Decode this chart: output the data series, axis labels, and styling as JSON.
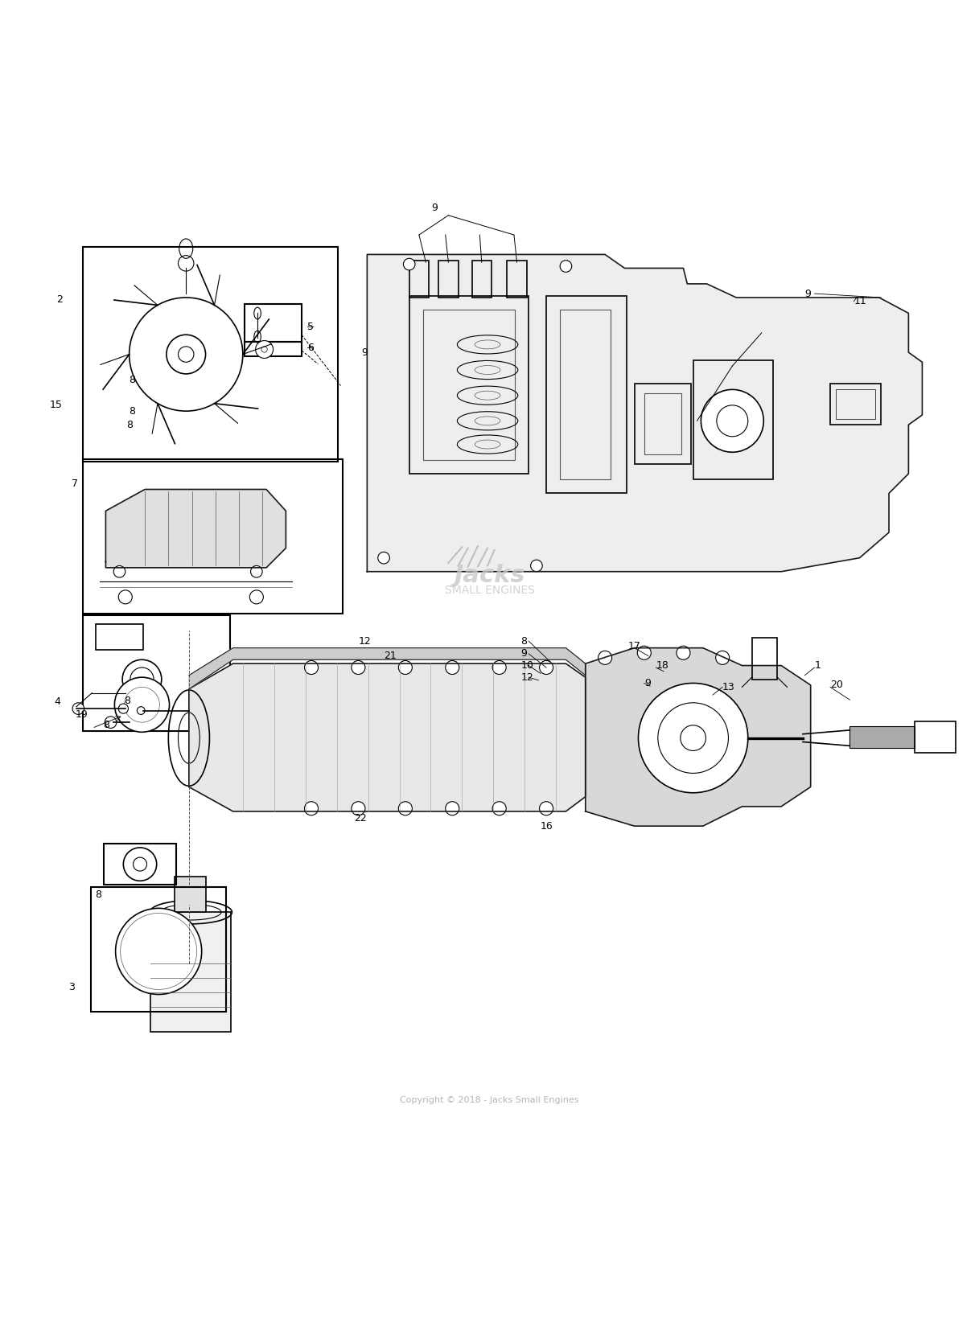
{
  "title": "",
  "background_color": "#ffffff",
  "watermark_line1": "Jacks",
  "watermark_line2": "SMALL ENGINES",
  "watermark_copyright": "Copyright © 2018 - Jacks Small Engines",
  "figsize": [
    12.17,
    16.6
  ],
  "dpi": 100
}
